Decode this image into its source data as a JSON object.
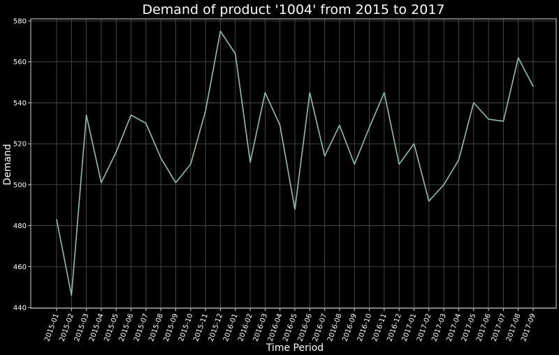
{
  "chart_data": {
    "type": "line",
    "title": "Demand of product '1004' from 2015 to 2017",
    "xlabel": "Time Period",
    "ylabel": "Demand",
    "ylim": [
      440,
      580
    ],
    "yticks": [
      440,
      460,
      480,
      500,
      520,
      540,
      560,
      580
    ],
    "grid": true,
    "legend": "none",
    "categories": [
      "2015-01",
      "2015-02",
      "2015-03",
      "2015-04",
      "2015-05",
      "2015-06",
      "2015-07",
      "2015-08",
      "2015-09",
      "2015-10",
      "2015-11",
      "2015-12",
      "2016-01",
      "2016-02",
      "2016-03",
      "2016-04",
      "2016-05",
      "2016-06",
      "2016-07",
      "2016-08",
      "2016-09",
      "2016-10",
      "2016-11",
      "2016-12",
      "2017-01",
      "2017-02",
      "2017-03",
      "2017-04",
      "2017-05",
      "2017-06",
      "2017-07",
      "2017-08",
      "2017-09"
    ],
    "series": [
      {
        "values": [
          483,
          446,
          534,
          501,
          516,
          534,
          530,
          513,
          501,
          510,
          536,
          575,
          564,
          511,
          545,
          529,
          488,
          545,
          514,
          529,
          510,
          528,
          545,
          510,
          520,
          492,
          500,
          512,
          540,
          532,
          531,
          562,
          548
        ]
      }
    ],
    "colors": {
      "background": "#000000",
      "line": "#8fbfb3",
      "grid": "#555555",
      "frame": "#cfcfcf",
      "text": "#ffffff"
    }
  }
}
